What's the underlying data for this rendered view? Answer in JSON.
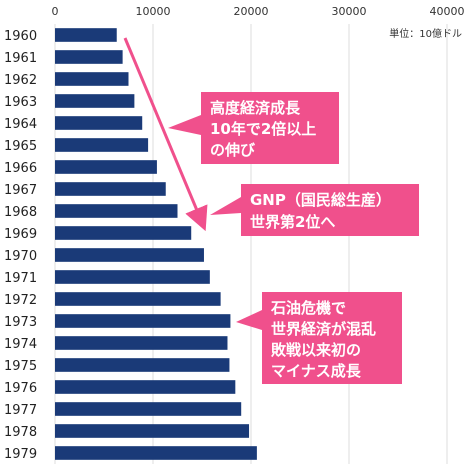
{
  "chart_data": {
    "type": "bar",
    "orientation": "horizontal",
    "title": "",
    "xlabel": "",
    "ylabel": "",
    "unit": "単位：10億ドル",
    "xlim": [
      0,
      40000
    ],
    "xticks": [
      0,
      10000,
      20000,
      30000,
      40000
    ],
    "grid": true,
    "bar_color": "#1a3a78",
    "categories": [
      "1960",
      "1961",
      "1962",
      "1963",
      "1964",
      "1965",
      "1966",
      "1967",
      "1968",
      "1969",
      "1970",
      "1971",
      "1972",
      "1973",
      "1974",
      "1975",
      "1976",
      "1977",
      "1978",
      "1979"
    ],
    "values": [
      6300,
      6900,
      7500,
      8100,
      8900,
      9500,
      10400,
      11300,
      12500,
      13900,
      15200,
      15800,
      16900,
      17900,
      17600,
      17800,
      18400,
      19000,
      19800,
      20600
    ]
  },
  "annotations": [
    {
      "id": "growth",
      "lines": [
        "高度経済成長",
        "10年で2倍以上",
        "の伸び"
      ]
    },
    {
      "id": "gnp",
      "lines": [
        "GNP（国民総生産）",
        "世界第2位へ"
      ]
    },
    {
      "id": "oil",
      "lines": [
        "石油危機で",
        "世界経済が混乱",
        "敗戦以来初の",
        "マイナス成長"
      ]
    }
  ],
  "colors": {
    "accent": "#f0508c",
    "bar": "#1a3a78",
    "grid": "#dddddd"
  }
}
